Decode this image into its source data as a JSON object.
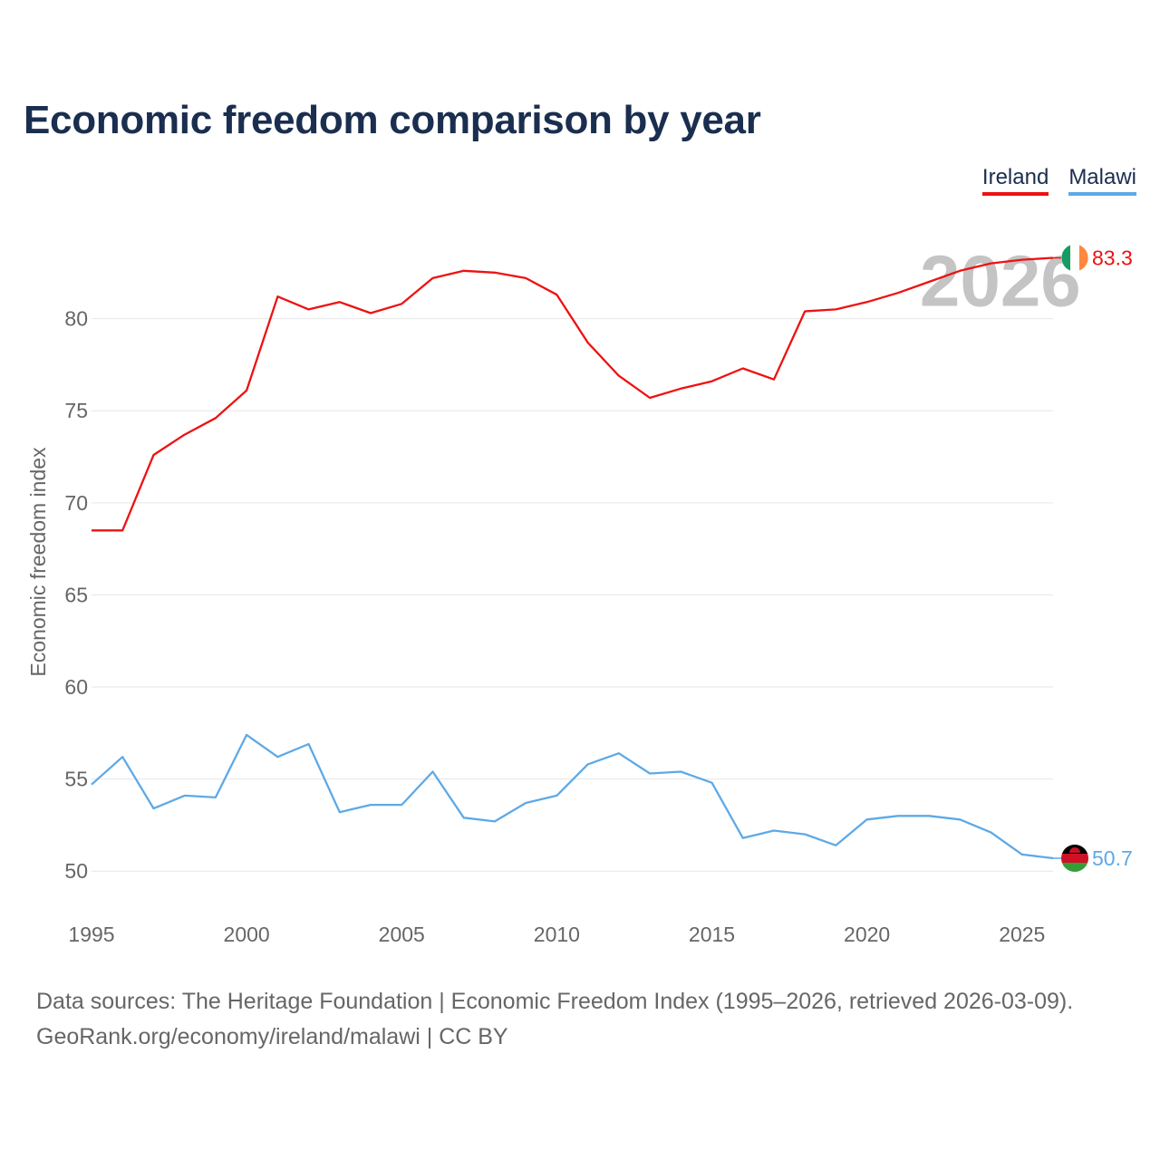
{
  "header": {
    "title": "Economic freedom comparison by year"
  },
  "legend": [
    {
      "label": "Ireland",
      "color": "#ee1111"
    },
    {
      "label": "Malawi",
      "color": "#5ea9e6"
    }
  ],
  "chart_data": {
    "type": "line",
    "title": "Economic freedom comparison by year",
    "xlabel": "",
    "ylabel": "Economic freedom index",
    "x": [
      1995,
      1996,
      1997,
      1998,
      1999,
      2000,
      2001,
      2002,
      2003,
      2004,
      2005,
      2006,
      2007,
      2008,
      2009,
      2010,
      2011,
      2012,
      2013,
      2014,
      2015,
      2016,
      2017,
      2018,
      2019,
      2020,
      2021,
      2022,
      2023,
      2024,
      2025,
      2026
    ],
    "xlim": [
      1995,
      2026
    ],
    "ylim": [
      47.6,
      85
    ],
    "xticks": [
      "1995",
      "2000",
      "2005",
      "2010",
      "2015",
      "2020",
      "2025"
    ],
    "yticks": [
      "50",
      "55",
      "60",
      "65",
      "70",
      "75",
      "80"
    ],
    "grid": true,
    "watermark_year": "2026",
    "series": [
      {
        "name": "Ireland",
        "color": "#ee1111",
        "end_label": "83.3",
        "values": [
          68.5,
          68.5,
          72.6,
          73.7,
          74.6,
          76.1,
          81.2,
          80.5,
          80.9,
          80.3,
          80.8,
          82.2,
          82.6,
          82.5,
          82.2,
          81.3,
          78.7,
          76.9,
          75.7,
          76.2,
          76.6,
          77.3,
          76.7,
          80.4,
          80.5,
          80.9,
          81.4,
          82.0,
          82.6,
          83.0,
          83.2,
          83.3
        ]
      },
      {
        "name": "Malawi",
        "color": "#5ea9e6",
        "end_label": "50.7",
        "values": [
          54.7,
          56.2,
          53.4,
          54.1,
          54.0,
          57.4,
          56.2,
          56.9,
          53.2,
          53.6,
          53.6,
          55.4,
          52.9,
          52.7,
          53.7,
          54.1,
          55.8,
          56.4,
          55.3,
          55.4,
          54.8,
          51.8,
          52.2,
          52.0,
          51.4,
          52.8,
          53.0,
          53.0,
          52.8,
          52.1,
          50.9,
          50.7
        ]
      }
    ]
  },
  "footer": {
    "line1": "Data sources: The Heritage Foundation | Economic Freedom Index (1995–2026, retrieved 2026-03-09).",
    "line2": "GeoRank.org/economy/ireland/malawi | CC BY"
  }
}
